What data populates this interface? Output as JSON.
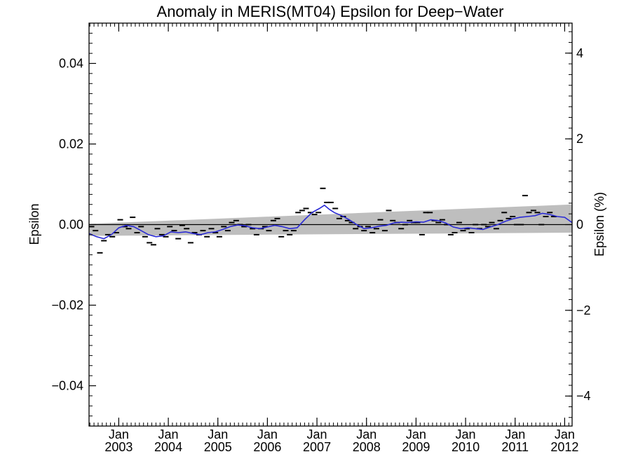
{
  "chart_data": {
    "type": "line",
    "title": "Anomaly in MERIS(MT04) Epsilon for Deep−Water",
    "ylabel": "Epsilon",
    "y2label": "Epsilon (%)",
    "xlim": [
      2002.4,
      2012.15
    ],
    "ylim": [
      -0.05,
      0.05
    ],
    "y2lim": [
      -4.7,
      4.7
    ],
    "yticks": [
      {
        "value": 0.04,
        "label": "0.04"
      },
      {
        "value": 0.02,
        "label": "0.02"
      },
      {
        "value": 0.0,
        "label": "0.00"
      },
      {
        "value": -0.02,
        "label": "−0.02"
      },
      {
        "value": -0.04,
        "label": "−0.04"
      }
    ],
    "y2ticks": [
      {
        "value": 4,
        "label": "4"
      },
      {
        "value": 2,
        "label": "2"
      },
      {
        "value": 0,
        "label": "0"
      },
      {
        "value": -2,
        "label": "−2"
      },
      {
        "value": -4,
        "label": "−4"
      }
    ],
    "xticks": [
      {
        "value": 2003.0,
        "month": "Jan",
        "year": "2003"
      },
      {
        "value": 2004.0,
        "month": "Jan",
        "year": "2004"
      },
      {
        "value": 2005.0,
        "month": "Jan",
        "year": "2005"
      },
      {
        "value": 2006.0,
        "month": "Jan",
        "year": "2006"
      },
      {
        "value": 2007.0,
        "month": "Jan",
        "year": "2007"
      },
      {
        "value": 2008.0,
        "month": "Jan",
        "year": "2008"
      },
      {
        "value": 2009.0,
        "month": "Jan",
        "year": "2009"
      },
      {
        "value": 2010.0,
        "month": "Jan",
        "year": "2010"
      },
      {
        "value": 2011.0,
        "month": "Jan",
        "year": "2011"
      },
      {
        "value": 2012.0,
        "month": "Jan",
        "year": "2012"
      }
    ],
    "uncertainty_band": {
      "lower": [
        [
          2002.4,
          -0.0028
        ],
        [
          2012.15,
          -0.002
        ]
      ],
      "upper": [
        [
          2002.4,
          0.0002
        ],
        [
          2012.15,
          0.005
        ]
      ]
    },
    "monthly_points": [
      [
        2002.45,
        -0.0005
      ],
      [
        2002.53,
        -0.0015
      ],
      [
        2002.62,
        -0.007
      ],
      [
        2002.7,
        -0.004
      ],
      [
        2002.78,
        -0.0025
      ],
      [
        2002.87,
        -0.003
      ],
      [
        2002.95,
        -0.002
      ],
      [
        2003.03,
        0.0012
      ],
      [
        2003.12,
        -0.0005
      ],
      [
        2003.2,
        -0.001
      ],
      [
        2003.28,
        0.0018
      ],
      [
        2003.37,
        -0.002
      ],
      [
        2003.45,
        -0.0005
      ],
      [
        2003.53,
        -0.003
      ],
      [
        2003.62,
        -0.0045
      ],
      [
        2003.7,
        -0.005
      ],
      [
        2003.78,
        -0.001
      ],
      [
        2003.87,
        -0.0025
      ],
      [
        2003.95,
        -0.003
      ],
      [
        2004.03,
        -0.0005
      ],
      [
        2004.12,
        -0.0015
      ],
      [
        2004.2,
        -0.0035
      ],
      [
        2004.28,
        -0.0002
      ],
      [
        2004.37,
        -0.001
      ],
      [
        2004.45,
        -0.0045
      ],
      [
        2004.53,
        -0.002
      ],
      [
        2004.62,
        -0.0025
      ],
      [
        2004.7,
        -0.0015
      ],
      [
        2004.78,
        -0.003
      ],
      [
        2004.87,
        -0.001
      ],
      [
        2004.95,
        -0.002
      ],
      [
        2005.03,
        -0.003
      ],
      [
        2005.12,
        -0.0005
      ],
      [
        2005.2,
        -0.0015
      ],
      [
        2005.28,
        0.0005
      ],
      [
        2005.37,
        0.001
      ],
      [
        2005.45,
        0.0
      ],
      [
        2005.53,
        -0.0005
      ],
      [
        2005.62,
        0.0
      ],
      [
        2005.7,
        -0.001
      ],
      [
        2005.78,
        -0.0025
      ],
      [
        2005.87,
        -0.001
      ],
      [
        2005.95,
        -0.0005
      ],
      [
        2006.03,
        -0.0015
      ],
      [
        2006.12,
        0.001
      ],
      [
        2006.2,
        0.0015
      ],
      [
        2006.28,
        -0.003
      ],
      [
        2006.37,
        -0.0015
      ],
      [
        2006.45,
        -0.0025
      ],
      [
        2006.53,
        -0.0015
      ],
      [
        2006.62,
        0.003
      ],
      [
        2006.7,
        0.0035
      ],
      [
        2006.78,
        0.004
      ],
      [
        2006.87,
        0.003
      ],
      [
        2006.95,
        0.0025
      ],
      [
        2007.03,
        0.003
      ],
      [
        2007.12,
        0.009
      ],
      [
        2007.2,
        0.0055
      ],
      [
        2007.28,
        0.0055
      ],
      [
        2007.37,
        0.004
      ],
      [
        2007.45,
        0.0015
      ],
      [
        2007.53,
        0.002
      ],
      [
        2007.62,
        0.001
      ],
      [
        2007.7,
        0.0005
      ],
      [
        2007.78,
        -0.001
      ],
      [
        2007.87,
        -0.0005
      ],
      [
        2007.95,
        -0.0015
      ],
      [
        2008.03,
        -0.0005
      ],
      [
        2008.12,
        -0.002
      ],
      [
        2008.2,
        -0.001
      ],
      [
        2008.28,
        0.0012
      ],
      [
        2008.37,
        -0.0015
      ],
      [
        2008.45,
        0.0035
      ],
      [
        2008.53,
        0.001
      ],
      [
        2008.62,
        0.0005
      ],
      [
        2008.7,
        -0.001
      ],
      [
        2008.78,
        0.0
      ],
      [
        2008.87,
        0.001
      ],
      [
        2008.95,
        0.0005
      ],
      [
        2009.03,
        0.0005
      ],
      [
        2009.12,
        -0.0025
      ],
      [
        2009.2,
        0.003
      ],
      [
        2009.28,
        0.003
      ],
      [
        2009.37,
        0.001
      ],
      [
        2009.45,
        0.0005
      ],
      [
        2009.53,
        0.0012
      ],
      [
        2009.62,
        0.0
      ],
      [
        2009.7,
        -0.0025
      ],
      [
        2009.78,
        -0.002
      ],
      [
        2009.87,
        0.0005
      ],
      [
        2009.95,
        -0.0015
      ],
      [
        2010.03,
        -0.001
      ],
      [
        2010.12,
        -0.002
      ],
      [
        2010.2,
        0.0
      ],
      [
        2010.28,
        -0.001
      ],
      [
        2010.37,
        0.0
      ],
      [
        2010.45,
        -0.0005
      ],
      [
        2010.53,
        0.0005
      ],
      [
        2010.62,
        -0.001
      ],
      [
        2010.7,
        0.001
      ],
      [
        2010.78,
        0.003
      ],
      [
        2010.87,
        0.0015
      ],
      [
        2010.95,
        0.002
      ],
      [
        2011.03,
        0.0
      ],
      [
        2011.12,
        0.0
      ],
      [
        2011.2,
        0.0072
      ],
      [
        2011.28,
        0.003
      ],
      [
        2011.37,
        0.0035
      ],
      [
        2011.45,
        0.003
      ],
      [
        2011.53,
        0.0
      ],
      [
        2011.62,
        0.002
      ],
      [
        2011.7,
        0.003
      ],
      [
        2011.78,
        0.002
      ]
    ],
    "smoothed_line": [
      [
        2002.4,
        -0.0022
      ],
      [
        2002.55,
        -0.003
      ],
      [
        2002.7,
        -0.0035
      ],
      [
        2002.85,
        -0.0025
      ],
      [
        2003.0,
        -0.0008
      ],
      [
        2003.15,
        -0.0002
      ],
      [
        2003.3,
        -0.0005
      ],
      [
        2003.45,
        -0.0015
      ],
      [
        2003.6,
        -0.0025
      ],
      [
        2003.75,
        -0.003
      ],
      [
        2003.9,
        -0.0028
      ],
      [
        2004.05,
        -0.0018
      ],
      [
        2004.2,
        -0.002
      ],
      [
        2004.35,
        -0.0018
      ],
      [
        2004.5,
        -0.0022
      ],
      [
        2004.65,
        -0.0025
      ],
      [
        2004.8,
        -0.002
      ],
      [
        2004.95,
        -0.0018
      ],
      [
        2005.1,
        -0.0012
      ],
      [
        2005.25,
        -0.0005
      ],
      [
        2005.4,
        -0.0001
      ],
      [
        2005.55,
        -0.0003
      ],
      [
        2005.7,
        -0.0008
      ],
      [
        2005.85,
        -0.001
      ],
      [
        2006.0,
        -0.0006
      ],
      [
        2006.15,
        -0.0002
      ],
      [
        2006.3,
        -0.0005
      ],
      [
        2006.45,
        -0.001
      ],
      [
        2006.6,
        -0.0008
      ],
      [
        2006.75,
        0.0012
      ],
      [
        2006.9,
        0.003
      ],
      [
        2007.05,
        0.004
      ],
      [
        2007.15,
        0.0048
      ],
      [
        2007.25,
        0.0038
      ],
      [
        2007.35,
        0.003
      ],
      [
        2007.5,
        0.0022
      ],
      [
        2007.65,
        0.0012
      ],
      [
        2007.8,
        0.0
      ],
      [
        2007.95,
        -0.001
      ],
      [
        2008.1,
        -0.0008
      ],
      [
        2008.25,
        -0.0004
      ],
      [
        2008.4,
        -0.0002
      ],
      [
        2008.55,
        0.0004
      ],
      [
        2008.7,
        0.0006
      ],
      [
        2008.85,
        0.0005
      ],
      [
        2009.0,
        0.0007
      ],
      [
        2009.15,
        0.0006
      ],
      [
        2009.3,
        0.0012
      ],
      [
        2009.45,
        0.001
      ],
      [
        2009.6,
        0.0004
      ],
      [
        2009.75,
        -0.0006
      ],
      [
        2009.9,
        -0.001
      ],
      [
        2010.05,
        -0.0008
      ],
      [
        2010.2,
        -0.001
      ],
      [
        2010.35,
        -0.0012
      ],
      [
        2010.5,
        -0.0006
      ],
      [
        2010.65,
        0.0
      ],
      [
        2010.8,
        0.0008
      ],
      [
        2010.95,
        0.0014
      ],
      [
        2011.1,
        0.0018
      ],
      [
        2011.25,
        0.002
      ],
      [
        2011.4,
        0.0022
      ],
      [
        2011.55,
        0.0028
      ],
      [
        2011.7,
        0.0025
      ],
      [
        2011.85,
        0.002
      ],
      [
        2012.0,
        0.0018
      ],
      [
        2012.15,
        0.0005
      ]
    ],
    "zero_line": 0.0,
    "grid": false,
    "colors": {
      "smoothed_line": "#2a2ad6",
      "band": "#bebebe",
      "points": "#000000",
      "axes": "#000000"
    }
  }
}
